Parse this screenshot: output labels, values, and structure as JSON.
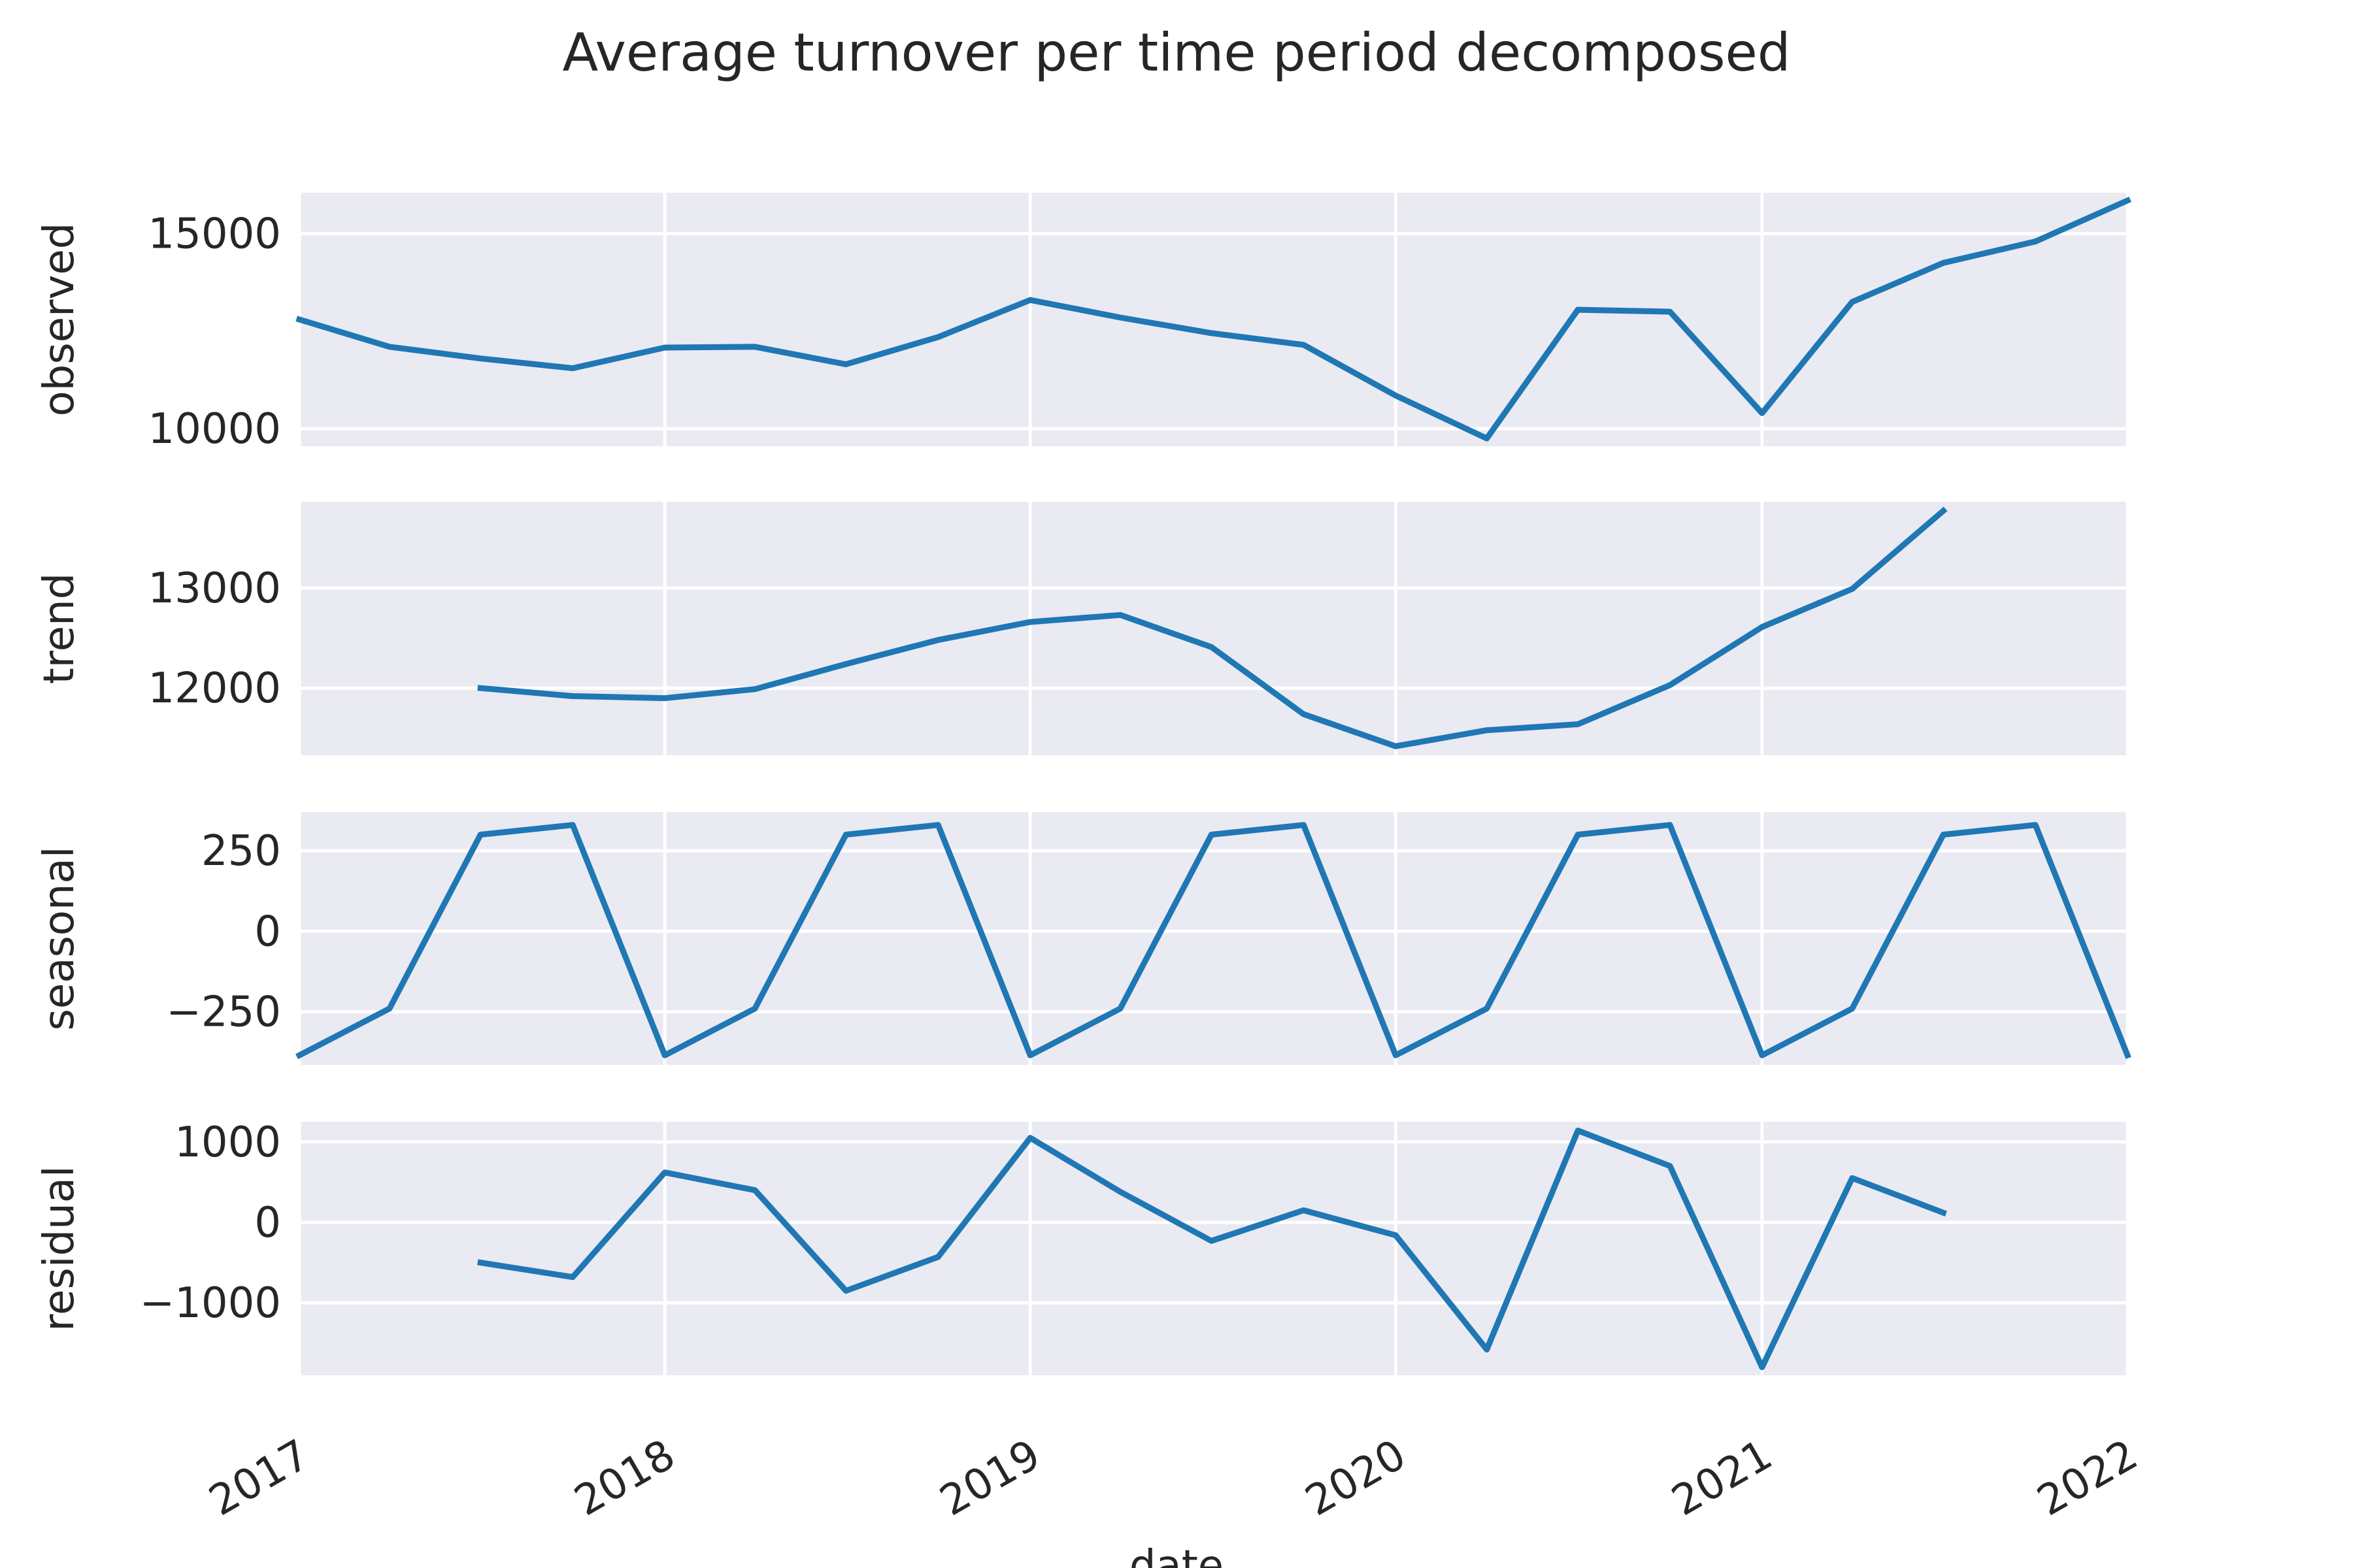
{
  "chart_data": {
    "type": "line",
    "title": "Average turnover per time period decomposed",
    "xlabel": "date",
    "x_ticks": [
      "2017",
      "2018",
      "2019",
      "2020",
      "2021",
      "2022"
    ],
    "x_range": [
      "2017-01-01",
      "2022-01-01"
    ],
    "grid": true,
    "color": "#1f77b4",
    "x": [
      "2017-01-01",
      "2017-04-01",
      "2017-07-01",
      "2017-10-01",
      "2018-01-01",
      "2018-04-01",
      "2018-07-01",
      "2018-10-01",
      "2019-01-01",
      "2019-04-01",
      "2019-07-01",
      "2019-10-01",
      "2020-01-01",
      "2020-04-01",
      "2020-07-01",
      "2020-10-01",
      "2021-01-01",
      "2021-04-01",
      "2021-07-01",
      "2021-10-01",
      "2022-01-01"
    ],
    "panels": [
      {
        "ylabel": "observed",
        "ylim": [
          9550,
          16050
        ],
        "y_ticks": [
          10000,
          15000
        ],
        "y_tick_labels": [
          "10000",
          "15000"
        ],
        "values": [
          12800,
          12100,
          11800,
          11550,
          12080,
          12100,
          11650,
          12350,
          13300,
          12850,
          12450,
          12150,
          10850,
          9750,
          13050,
          13000,
          10400,
          13250,
          14250,
          14800,
          15850
        ]
      },
      {
        "ylabel": "trend",
        "ylim": [
          11330,
          13860
        ],
        "y_ticks": [
          12000,
          13000
        ],
        "y_tick_labels": [
          "12000",
          "13000"
        ],
        "values": [
          null,
          null,
          12000,
          11920,
          11900,
          11990,
          12240,
          12480,
          12660,
          12730,
          12410,
          11740,
          11420,
          11580,
          11640,
          12030,
          12610,
          12990,
          13770,
          null,
          null
        ]
      },
      {
        "ylabel": "seasonal",
        "ylim": [
          -415,
          370
        ],
        "y_ticks": [
          -250,
          0,
          250
        ],
        "y_tick_labels": [
          "−250",
          "0",
          "250"
        ],
        "values": [
          -385,
          -240,
          300,
          330,
          -385,
          -240,
          300,
          330,
          -385,
          -240,
          300,
          330,
          -385,
          -240,
          300,
          330,
          -385,
          -240,
          300,
          330,
          -385
        ]
      },
      {
        "ylabel": "residual",
        "ylim": [
          -1900,
          1250
        ],
        "y_ticks": [
          -1000,
          0,
          1000
        ],
        "y_tick_labels": [
          "−1000",
          "0",
          "1000"
        ],
        "values": [
          null,
          null,
          -500,
          -680,
          620,
          400,
          -850,
          -430,
          1050,
          380,
          -230,
          150,
          -160,
          -1580,
          1140,
          700,
          -1800,
          550,
          120,
          null,
          null
        ]
      }
    ]
  }
}
